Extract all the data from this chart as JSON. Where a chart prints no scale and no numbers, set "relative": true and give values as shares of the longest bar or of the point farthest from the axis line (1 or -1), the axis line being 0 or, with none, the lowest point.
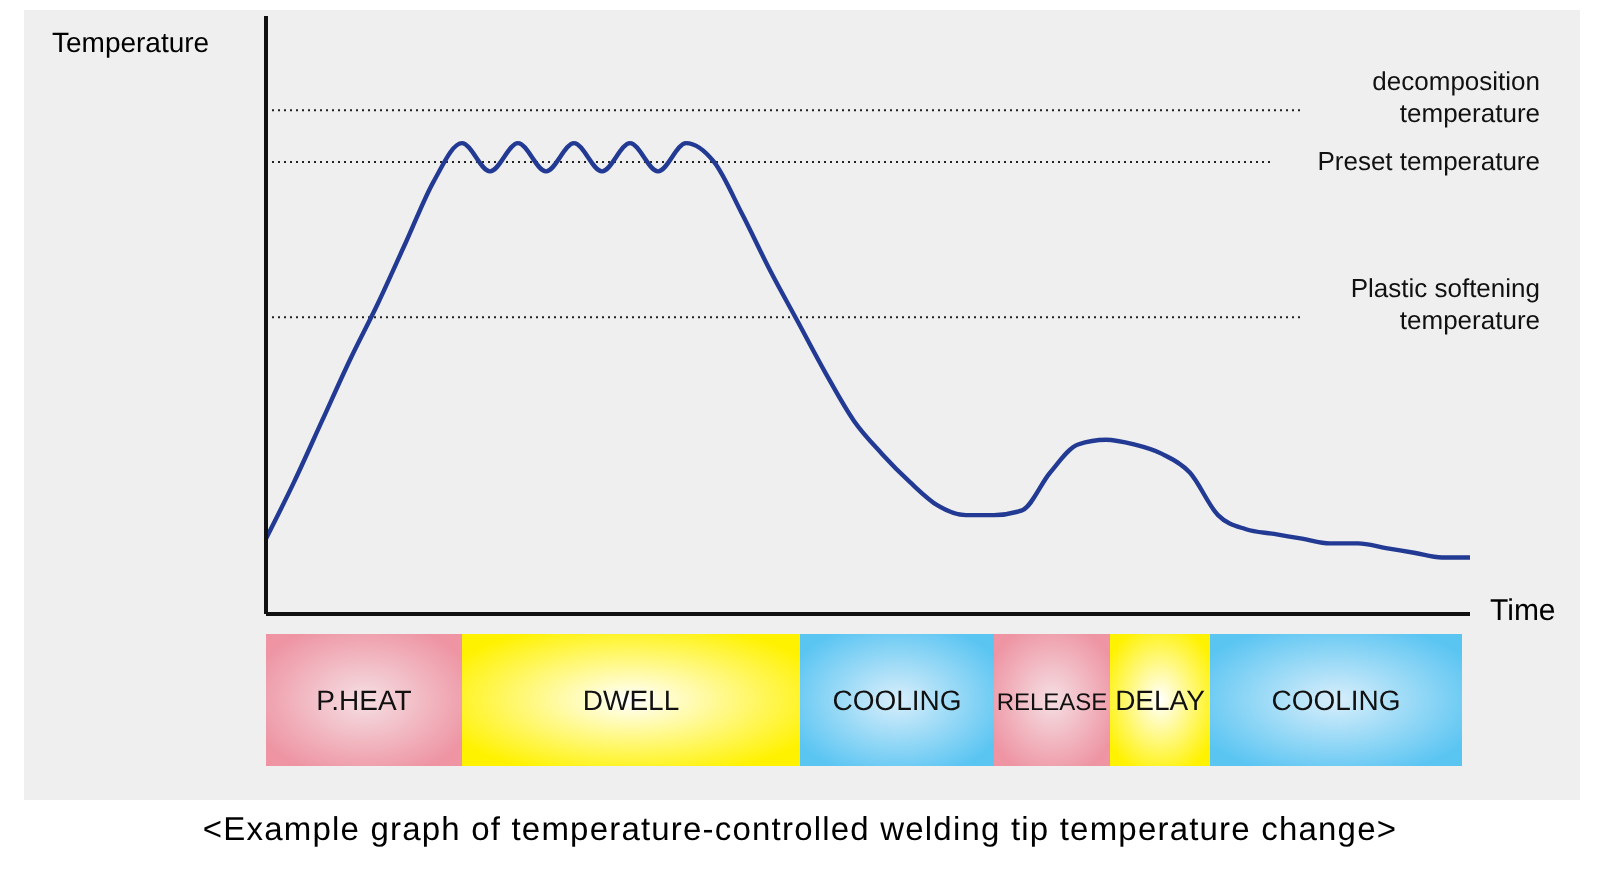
{
  "chart_data": {
    "type": "line",
    "relative": true,
    "ylabel": "Temperature",
    "xlabel": "Time",
    "categories": [
      null,
      null,
      null,
      null,
      null,
      null,
      null,
      null,
      null,
      null,
      null,
      null,
      null,
      null,
      null,
      null,
      null,
      null,
      null,
      null,
      null,
      null,
      null,
      null,
      null,
      null,
      null,
      null,
      null,
      null,
      null,
      null,
      null,
      null,
      null,
      null,
      null,
      null,
      null,
      null,
      null,
      null,
      null,
      null
    ],
    "series": [
      {
        "color": "#223a94",
        "values": [
          0.16,
          0.28,
          0.41,
          0.54,
          0.66,
          0.79,
          0.92,
          1,
          0.94,
          1,
          0.94,
          1,
          0.94,
          1,
          0.94,
          1,
          0.96,
          0.85,
          0.73,
          0.62,
          0.51,
          0.41,
          0.34,
          0.28,
          0.23,
          0.21,
          0.21,
          0.22,
          0.3,
          0.36,
          0.37,
          0.36,
          0.34,
          0.3,
          0.21,
          0.18,
          0.17,
          0.16,
          0.15,
          0.15,
          0.14,
          0.13,
          0.12,
          0.12
        ]
      }
    ],
    "ref_lines": [
      {
        "axis": "y",
        "value": 1.07,
        "label": "decomposition\ntemperature",
        "line_style": "dotted"
      },
      {
        "axis": "y",
        "value": 0.96,
        "label": "Preset temperature",
        "line_style": "dotted"
      },
      {
        "axis": "y",
        "value": 0.63,
        "label": "Plastic softening\ntemperature",
        "line_style": "dotted"
      }
    ],
    "annotations": [
      "P.HEAT",
      "DWELL",
      "COOLING",
      "RELEASE",
      "DELAY",
      "COOLING",
      "<Example graph of temperature-controlled welding tip temperature change>"
    ],
    "grid": false,
    "legend": false,
    "marker": "none",
    "line_style": "solid"
  }
}
